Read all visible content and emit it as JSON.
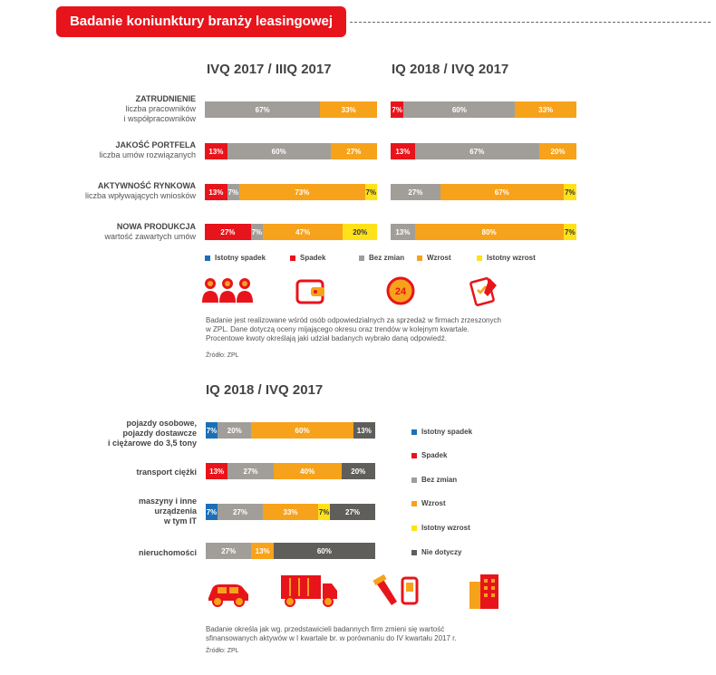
{
  "title": "Badanie koniunktury branży leasingowej",
  "colors": {
    "istotny_spadek": "#1d6fb5",
    "spadek": "#e8141b",
    "bez_zmian": "#a19e99",
    "wzrost": "#f7a21b",
    "istotny_wzrost": "#ffe11a",
    "nie_dotyczy": "#5f5e5a",
    "brand": "#e8141b"
  },
  "top": {
    "headers": [
      "IVQ 2017 / IIIQ 2017",
      "IQ 2018 / IVQ 2017"
    ],
    "rows": [
      {
        "title": "ZATRUDNIENIE",
        "sub": [
          "liczba pracowników",
          "i współpracowników"
        ]
      },
      {
        "title": "JAKOŚĆ PORTFELA",
        "sub": [
          "liczba umów rozwiązanych"
        ]
      },
      {
        "title": "AKTYWNOŚĆ RYNKOWA",
        "sub": [
          "liczba wpływających wniosków"
        ]
      },
      {
        "title": "NOWA PRODUKCJA",
        "sub": [
          "wartość zawartych umów"
        ]
      }
    ],
    "legend": [
      "Istotny spadek",
      "Spadek",
      "Bez zmian",
      "Wzrost",
      "Istotny wzrost"
    ],
    "note": [
      "Badanie jest realizowane wśród osób odpowiedzialnych za sprzedaż w firmach zrzeszonych",
      "w ZPL. Dane dotyczą oceny mijającego okresu oraz trendów w kolejnym kwartale.",
      "Procentowe kwoty określają jaki udział badanych wybrało daną odpowiedź."
    ],
    "source": "Źródło: ZPL"
  },
  "bottom": {
    "header": "IQ 2018 / IVQ 2017",
    "rows": [
      {
        "label": [
          "pojazdy osobowe,",
          "pojazdy dostawcze",
          "i ciężarowe do 3,5 tony"
        ]
      },
      {
        "label": [
          "transport ciężki"
        ]
      },
      {
        "label": [
          "maszyny i inne",
          "urządzenia",
          "w tym IT"
        ]
      },
      {
        "label": [
          "nieruchomości"
        ]
      }
    ],
    "legend": [
      "Istotny spadek",
      "Spadek",
      "Bez zmian",
      "Wzrost",
      "Istotny wzrost",
      "Nie dotyczy"
    ],
    "note": [
      "Badanie określa jak wg. przedstawicieli badannych firm zmieni się wartość",
      "sfinansowanych aktywów w I kwartale br. w porównaniu do IV kwartału 2017 r."
    ],
    "source": "Źródło: ZPL"
  },
  "chart_data": [
    {
      "type": "bar",
      "title": "IVQ 2017 / IIIQ 2017",
      "orientation": "horizontal-stacked-percent",
      "categories": [
        "ZATRUDNIENIE",
        "JAKOŚĆ PORTFELA",
        "AKTYWNOŚĆ RYNKOWA",
        "NOWA PRODUKCJA"
      ],
      "series": [
        {
          "name": "Istotny spadek",
          "values": [
            0,
            0,
            0,
            0
          ]
        },
        {
          "name": "Spadek",
          "values": [
            0,
            13,
            13,
            27
          ]
        },
        {
          "name": "Bez zmian",
          "values": [
            67,
            60,
            7,
            7
          ]
        },
        {
          "name": "Wzrost",
          "values": [
            33,
            27,
            73,
            47
          ]
        },
        {
          "name": "Istotny wzrost",
          "values": [
            0,
            0,
            7,
            20
          ]
        }
      ]
    },
    {
      "type": "bar",
      "title": "IQ 2018 / IVQ 2017",
      "orientation": "horizontal-stacked-percent",
      "categories": [
        "ZATRUDNIENIE",
        "JAKOŚĆ PORTFELA",
        "AKTYWNOŚĆ RYNKOWA",
        "NOWA PRODUKCJA"
      ],
      "series": [
        {
          "name": "Istotny spadek",
          "values": [
            0,
            0,
            0,
            0
          ]
        },
        {
          "name": "Spadek",
          "values": [
            7,
            13,
            0,
            0
          ]
        },
        {
          "name": "Bez zmian",
          "values": [
            60,
            67,
            27,
            13
          ]
        },
        {
          "name": "Wzrost",
          "values": [
            33,
            20,
            67,
            80
          ]
        },
        {
          "name": "Istotny wzrost",
          "values": [
            0,
            0,
            7,
            7
          ]
        }
      ]
    },
    {
      "type": "bar",
      "title": "IQ 2018 / IVQ 2017",
      "orientation": "horizontal-stacked-percent",
      "categories": [
        "pojazdy osobowe, pojazdy dostawcze i ciężarowe do 3,5 tony",
        "transport ciężki",
        "maszyny i inne urządzenia w tym IT",
        "nieruchomości"
      ],
      "series": [
        {
          "name": "Istotny spadek",
          "values": [
            7,
            0,
            7,
            0
          ]
        },
        {
          "name": "Spadek",
          "values": [
            0,
            13,
            0,
            0
          ]
        },
        {
          "name": "Bez zmian",
          "values": [
            20,
            27,
            27,
            27
          ]
        },
        {
          "name": "Wzrost",
          "values": [
            60,
            40,
            33,
            13
          ]
        },
        {
          "name": "Istotny wzrost",
          "values": [
            0,
            0,
            7,
            0
          ]
        },
        {
          "name": "Nie dotyczy",
          "values": [
            13,
            20,
            27,
            60
          ]
        }
      ]
    }
  ]
}
